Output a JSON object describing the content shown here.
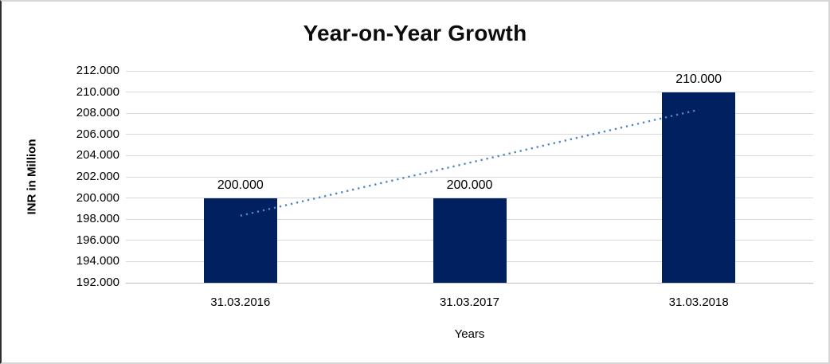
{
  "chart_data": {
    "type": "bar",
    "title": "Year-on-Year Growth",
    "xlabel": "Years",
    "ylabel": "INR in Million",
    "categories": [
      "31.03.2016",
      "31.03.2017",
      "31.03.2018"
    ],
    "values": [
      200.0,
      200.0,
      210.0
    ],
    "value_labels": [
      "200.000",
      "200.000",
      "210.000"
    ],
    "ylim": [
      192,
      212
    ],
    "y_tick_step": 2,
    "y_tick_labels": [
      "212.000",
      "210.000",
      "208.000",
      "206.000",
      "204.000",
      "202.000",
      "200.000",
      "198.000",
      "196.000",
      "194.000",
      "192.000"
    ],
    "grid": true,
    "legend_position": "none",
    "trendline": {
      "type": "linear",
      "style": "dotted",
      "start_value": 198.333,
      "end_value": 208.333,
      "start_category_index": 0,
      "end_category_index": 2
    },
    "colors": {
      "bar": "#002060",
      "trendline": "#4e87c9",
      "gridline": "#d9d9d9",
      "axis_line": "#bfbfbf",
      "text": "#000000",
      "background": "#ffffff"
    }
  }
}
